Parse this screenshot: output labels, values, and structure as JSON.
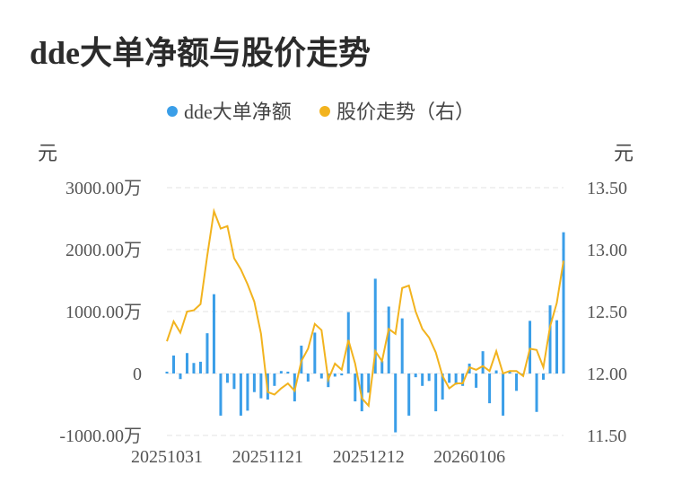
{
  "title": "dde大单净额与股价走势",
  "chart_data": {
    "type": "bar+line",
    "legend": [
      {
        "name": "dde大单净额",
        "color": "#3a9ee8"
      },
      {
        "name": "股价走势（右）",
        "color": "#f2b31e"
      }
    ],
    "y_left": {
      "unit": "元",
      "ticks": [
        "3000.00万",
        "2000.00万",
        "1000.00万",
        "0",
        "-1000.00万"
      ],
      "min": -1000,
      "max": 3000
    },
    "y_right": {
      "unit": "元",
      "ticks": [
        "13.50",
        "13.00",
        "12.50",
        "12.00",
        "11.50"
      ],
      "min": 11.5,
      "max": 13.5
    },
    "x_ticks": [
      "20251031",
      "20251121",
      "20251212",
      "20260106"
    ],
    "x_tick_index": [
      0,
      15,
      30,
      45
    ],
    "bar_values": [
      30,
      290,
      -90,
      330,
      170,
      190,
      650,
      1280,
      -680,
      -150,
      -250,
      -680,
      -600,
      -300,
      -400,
      -420,
      -200,
      40,
      30,
      -450,
      450,
      -130,
      660,
      -80,
      -220,
      -50,
      -30,
      990,
      -450,
      -610,
      -310,
      1530,
      200,
      1080,
      -950,
      890,
      -680,
      -60,
      -200,
      -120,
      -610,
      -420,
      -150,
      -180,
      -200,
      160,
      -230,
      360,
      -480,
      50,
      -680,
      30,
      -280,
      0,
      850,
      -620,
      -100,
      1100,
      860,
      2280
    ],
    "price_values": [
      12.26,
      12.42,
      12.33,
      12.5,
      12.51,
      12.56,
      12.95,
      13.31,
      13.17,
      13.19,
      12.93,
      12.84,
      12.72,
      12.58,
      12.32,
      11.85,
      11.83,
      11.88,
      11.92,
      11.86,
      12.1,
      12.2,
      12.4,
      12.35,
      11.95,
      12.08,
      12.03,
      12.27,
      12.08,
      11.8,
      11.74,
      12.18,
      12.1,
      12.36,
      12.32,
      12.69,
      12.71,
      12.5,
      12.36,
      12.29,
      12.17,
      11.98,
      11.88,
      11.92,
      11.92,
      12.05,
      12.03,
      12.06,
      12.02,
      12.18,
      12.0,
      12.02,
      12.02,
      11.98,
      12.2,
      12.19,
      12.05,
      12.38,
      12.57,
      12.91
    ]
  }
}
